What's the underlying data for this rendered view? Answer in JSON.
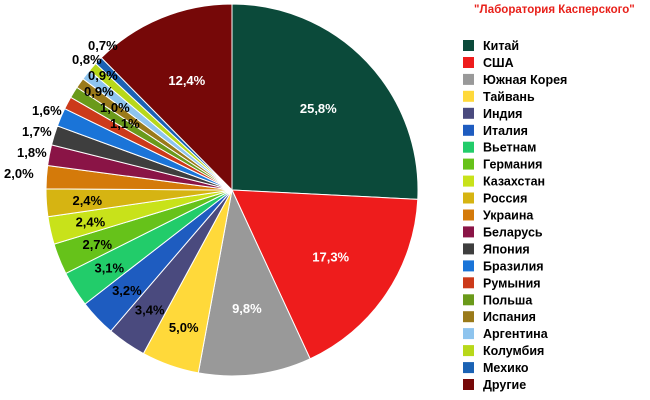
{
  "credit": "\"Лаборатория Касперского\"",
  "colors": {
    "credit": "#e8201a"
  },
  "chart_data": {
    "type": "pie",
    "title": "",
    "unit": "%",
    "slices": [
      {
        "name": "Китай",
        "value": 25.8,
        "label": "25,8%",
        "color": "#0b4a3a"
      },
      {
        "name": "США",
        "value": 17.3,
        "label": "17,3%",
        "color": "#ee1c1c"
      },
      {
        "name": "Южная Корея",
        "value": 9.8,
        "label": "9,8%",
        "color": "#999999"
      },
      {
        "name": "Тайвань",
        "value": 5.0,
        "label": "5,0%",
        "color": "#ffd93a"
      },
      {
        "name": "Индия",
        "value": 3.4,
        "label": "3,4%",
        "color": "#4a4a7e"
      },
      {
        "name": "Италия",
        "value": 3.2,
        "label": "3,2%",
        "color": "#1e5cc0"
      },
      {
        "name": "Вьетнам",
        "value": 3.1,
        "label": "3,1%",
        "color": "#22cc6a"
      },
      {
        "name": "Германия",
        "value": 2.7,
        "label": "2,7%",
        "color": "#66c21a"
      },
      {
        "name": "Казахстан",
        "value": 2.4,
        "label": "2,4%",
        "color": "#c8e21a"
      },
      {
        "name": "Россия",
        "value": 2.4,
        "label": "2,4%",
        "color": "#d6b412"
      },
      {
        "name": "Украина",
        "value": 2.0,
        "label": "2,0%",
        "color": "#d47a0a"
      },
      {
        "name": "Беларусь",
        "value": 1.8,
        "label": "1,8%",
        "color": "#8a1446"
      },
      {
        "name": "Япония",
        "value": 1.7,
        "label": "1,7%",
        "color": "#3e3e3e"
      },
      {
        "name": "Бразилия",
        "value": 1.6,
        "label": "1,6%",
        "color": "#1a74d8"
      },
      {
        "name": "Румыния",
        "value": 1.1,
        "label": "1,1%",
        "color": "#cc3a1a"
      },
      {
        "name": "Польша",
        "value": 1.0,
        "label": "1,0%",
        "color": "#6a9a1a"
      },
      {
        "name": "Испания",
        "value": 0.9,
        "label": "0,9%",
        "color": "#9a7a1a"
      },
      {
        "name": "Аргентина",
        "value": 0.9,
        "label": "0,9%",
        "color": "#8ec4ee"
      },
      {
        "name": "Колумбия",
        "value": 0.8,
        "label": "0,8%",
        "color": "#b8d81a"
      },
      {
        "name": "Мехико",
        "value": 0.7,
        "label": "0,7%",
        "color": "#1a62b4"
      },
      {
        "name": "Другие",
        "value": 12.4,
        "label": "12,4%",
        "color": "#760808"
      }
    ],
    "legend_position": "right"
  }
}
